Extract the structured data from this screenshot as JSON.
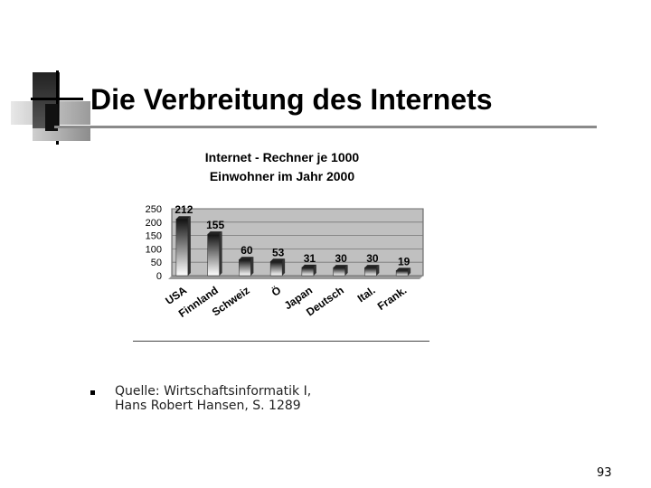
{
  "slide": {
    "title": "Die Verbreitung des Internets",
    "source_line1": "Quelle: Wirtschaftsinformatik I,",
    "source_line2": "Hans Robert Hansen, S. 1289",
    "page_number": "93"
  },
  "chart_data": {
    "type": "bar",
    "title_line1": "Internet - Rechner je 1000",
    "title_line2": "Einwohner im Jahr 2000",
    "categories": [
      "USA",
      "Finnland",
      "Schweiz",
      "Ö",
      "Japan",
      "Deutsch",
      "Ital.",
      "Frank."
    ],
    "values": [
      212,
      155,
      60,
      53,
      31,
      30,
      30,
      19
    ],
    "data_labels": [
      "212",
      "155",
      "60",
      "53",
      "31",
      "30",
      "30",
      "19"
    ],
    "ylim": [
      0,
      250
    ],
    "yticks": [
      "0",
      "50",
      "100",
      "150",
      "200",
      "250"
    ],
    "grid": true,
    "legend": "none",
    "plot_background": "#c0c0c0",
    "bar_color_top": "#111111",
    "bar_color_bottom": "#ffffff"
  }
}
